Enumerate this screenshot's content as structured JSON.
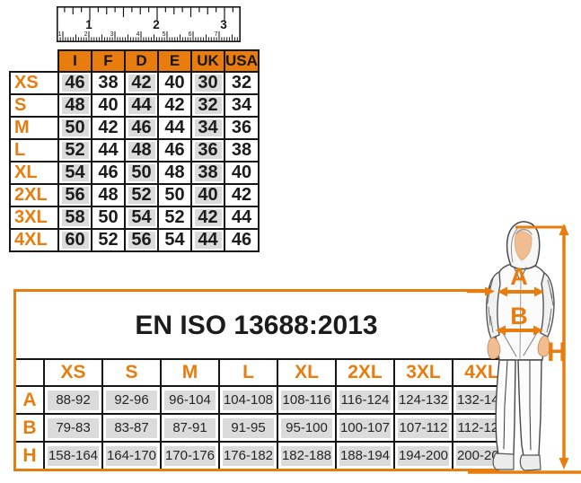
{
  "colors": {
    "orange": "#E87D0D",
    "cell_gray": "#DBDBDB",
    "ink": "#161616",
    "skin": "#F1BD90"
  },
  "ruler": {
    "inch_labels": [
      "1",
      "2",
      "3"
    ],
    "cm_labels": [
      "1",
      "2",
      "3",
      "4",
      "5",
      "6",
      "7"
    ]
  },
  "intl_size_table": {
    "columns": [
      "I",
      "F",
      "D",
      "E",
      "UK",
      "USA"
    ],
    "rows": [
      {
        "label": "XS",
        "values": [
          "46",
          "38",
          "42",
          "40",
          "30",
          "32"
        ]
      },
      {
        "label": "S",
        "values": [
          "48",
          "40",
          "44",
          "42",
          "32",
          "34"
        ]
      },
      {
        "label": "M",
        "values": [
          "50",
          "42",
          "46",
          "44",
          "34",
          "36"
        ]
      },
      {
        "label": "L",
        "values": [
          "52",
          "44",
          "48",
          "46",
          "36",
          "38"
        ]
      },
      {
        "label": "XL",
        "values": [
          "54",
          "46",
          "50",
          "48",
          "38",
          "40"
        ]
      },
      {
        "label": "2XL",
        "values": [
          "56",
          "48",
          "52",
          "50",
          "40",
          "42"
        ]
      },
      {
        "label": "3XL",
        "values": [
          "58",
          "50",
          "54",
          "52",
          "42",
          "44"
        ]
      },
      {
        "label": "4XL",
        "values": [
          "60",
          "52",
          "56",
          "54",
          "44",
          "46"
        ]
      }
    ]
  },
  "standard_table": {
    "title": "EN ISO 13688:2013",
    "columns": [
      "XS",
      "S",
      "M",
      "L",
      "XL",
      "2XL",
      "3XL",
      "4XL"
    ],
    "rows": [
      {
        "label": "A",
        "values": [
          "88-92",
          "92-96",
          "96-104",
          "104-108",
          "108-116",
          "116-124",
          "124-132",
          "132-140"
        ]
      },
      {
        "label": "B",
        "values": [
          "79-83",
          "83-87",
          "87-91",
          "91-95",
          "95-100",
          "100-107",
          "107-112",
          "112-120"
        ]
      },
      {
        "label": "H",
        "values": [
          "158-164",
          "164-170",
          "170-176",
          "176-182",
          "182-188",
          "188-194",
          "194-200",
          "200-206"
        ]
      }
    ]
  },
  "figure": {
    "chest_label": "A",
    "waist_label": "B",
    "height_label": "H"
  }
}
